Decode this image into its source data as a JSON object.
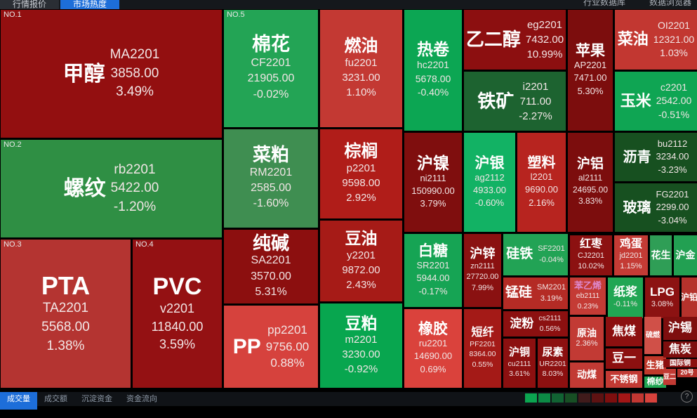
{
  "top_bar": {
    "tabs": [
      {
        "label": "行情报价",
        "active": false
      },
      {
        "label": "市场热度",
        "active": true
      }
    ],
    "menu": [
      {
        "label": "行业数据库"
      },
      {
        "label": "数据浏览器"
      }
    ]
  },
  "bottom_bar": {
    "tabs": [
      {
        "label": "成交量",
        "active": true
      },
      {
        "label": "成交额",
        "active": false
      },
      {
        "label": "沉淀资金",
        "active": false
      },
      {
        "label": "资金流向",
        "active": false
      }
    ],
    "legend_colors": [
      "#0ba550",
      "#0c8a45",
      "#116333",
      "#174f24",
      "#401b1b",
      "#5d1212",
      "#7e0e0e",
      "#a31616",
      "#c23732",
      "#d8423c"
    ],
    "help_icon": "?"
  },
  "tiles": [
    {
      "id": "jiachun",
      "rank": "NO.1",
      "name": "甲醇",
      "code": "MA2201",
      "price": "3858.00",
      "change": "3.49%",
      "color": "#930f10"
    },
    {
      "id": "luowen",
      "rank": "NO.2",
      "name": "螺纹",
      "code": "rb2201",
      "price": "5422.00",
      "change": "-1.20%",
      "color": "#2f8f44"
    },
    {
      "id": "pta",
      "rank": "NO.3",
      "name": "PTA",
      "code": "TA2201",
      "price": "5568.00",
      "change": "1.38%",
      "color": "#b43431"
    },
    {
      "id": "pvc",
      "rank": "NO.4",
      "name": "PVC",
      "code": "v2201",
      "price": "11840.00",
      "change": "3.59%",
      "color": "#941113"
    },
    {
      "id": "mianhua",
      "rank": "NO.5",
      "name": "棉花",
      "code": "CF2201",
      "price": "21905.00",
      "change": "-0.02%",
      "color": "#23a455"
    },
    {
      "id": "caipo",
      "name": "菜粕",
      "code": "RM2201",
      "price": "2585.00",
      "change": "-1.60%",
      "color": "#3f8e51"
    },
    {
      "id": "chunjian",
      "name": "纯碱",
      "code": "SA2201",
      "price": "3570.00",
      "change": "5.31%",
      "color": "#8c0f0f"
    },
    {
      "id": "pp",
      "name": "PP",
      "code": "pp2201",
      "price": "9756.00",
      "change": "0.88%",
      "color": "#d6423d"
    },
    {
      "id": "ranyou",
      "name": "燃油",
      "code": "fu2201",
      "price": "3231.00",
      "change": "1.10%",
      "color": "#c33933"
    },
    {
      "id": "zonglv",
      "name": "棕榈",
      "code": "p2201",
      "price": "9598.00",
      "change": "2.92%",
      "color": "#b01d19"
    },
    {
      "id": "douyou",
      "name": "豆油",
      "code": "y2201",
      "price": "9872.00",
      "change": "2.43%",
      "color": "#a61b17"
    },
    {
      "id": "doupo",
      "name": "豆粕",
      "code": "m2201",
      "price": "3230.00",
      "change": "-0.92%",
      "color": "#08a64f"
    },
    {
      "id": "rejuan",
      "name": "热卷",
      "code": "hc2201",
      "price": "5678.00",
      "change": "-0.40%",
      "color": "#0ca653"
    },
    {
      "id": "hunie",
      "name": "沪镍",
      "code": "ni2111",
      "price": "150990.00",
      "change": "3.79%",
      "color": "#7f0e0e"
    },
    {
      "id": "baitang",
      "name": "白糖",
      "code": "SR2201",
      "price": "5944.00",
      "change": "-0.17%",
      "color": "#16a454"
    },
    {
      "id": "xiangjiao",
      "name": "橡胶",
      "code": "ru2201",
      "price": "14690.00",
      "change": "0.69%",
      "color": "#da423c"
    },
    {
      "id": "yierchun",
      "name": "乙二醇",
      "code": "eg2201",
      "price": "7432.00",
      "change": "10.99%",
      "color": "#8c0f10"
    },
    {
      "id": "tiekuang",
      "name": "铁矿",
      "code": "i2201",
      "price": "711.00",
      "change": "-2.27%",
      "color": "#1d6330"
    },
    {
      "id": "huyin",
      "name": "沪银",
      "code": "ag2112",
      "price": "4933.00",
      "change": "-0.60%",
      "color": "#12b264"
    },
    {
      "id": "suliao",
      "name": "塑料",
      "code": "l2201",
      "price": "9690.00",
      "change": "2.16%",
      "color": "#b7241f"
    },
    {
      "id": "hulv",
      "name": "沪铝",
      "code": "al2111",
      "price": "24695.00",
      "change": "3.83%",
      "color": "#7c0d0d"
    },
    {
      "id": "pingguo",
      "name": "苹果",
      "code": "AP2201",
      "price": "7471.00",
      "change": "5.30%",
      "color": "#7c0d0d"
    },
    {
      "id": "caiyou",
      "name": "菜油",
      "code": "OI2201",
      "price": "12321.00",
      "change": "1.03%",
      "color": "#c23731"
    },
    {
      "id": "yumi",
      "name": "玉米",
      "code": "c2201",
      "price": "2542.00",
      "change": "-0.51%",
      "color": "#0fa553"
    },
    {
      "id": "liqing",
      "name": "沥青",
      "code": "bu2112",
      "price": "3234.00",
      "change": "-3.23%",
      "color": "#175020"
    },
    {
      "id": "boli",
      "name": "玻璃",
      "code": "FG2201",
      "price": "2299.00",
      "change": "-3.04%",
      "color": "#175020"
    },
    {
      "id": "huxin",
      "name": "沪锌",
      "code": "zn2111",
      "price": "27720.00",
      "change": "7.99%",
      "color": "#8a1111"
    },
    {
      "id": "guitie",
      "name": "硅铁",
      "code": "SF2201",
      "change": "-0.04%",
      "color": "#22a355"
    },
    {
      "id": "menggui",
      "name": "锰硅",
      "code": "SM2201",
      "change": "3.19%",
      "color": "#b42b25"
    },
    {
      "id": "duanxian",
      "name": "短纤",
      "code": "PF2201",
      "price": "8364.00",
      "change": "0.55%",
      "color": "#a41a17"
    },
    {
      "id": "dianfen",
      "name": "淀粉",
      "code": "cs2111",
      "change": "0.56%",
      "color": "#8c1010"
    },
    {
      "id": "hutong",
      "name": "沪铜",
      "code": "cu2111",
      "change": "3.61%",
      "color": "#8c1010"
    },
    {
      "id": "niaosu",
      "name": "尿素",
      "code": "UR2201",
      "change": "8.03%",
      "color": "#8c1010"
    },
    {
      "id": "hongzao",
      "name": "红枣",
      "code": "CJ2201",
      "change": "10.02%",
      "color": "#8c1111"
    },
    {
      "id": "jidan",
      "name": "鸡蛋",
      "code": "jd2201",
      "change": "1.15%",
      "color": "#c43b35"
    },
    {
      "id": "huasheng",
      "name": "花生",
      "color": "#2f9e56"
    },
    {
      "id": "hujin",
      "name": "沪金",
      "color": "#22a052"
    },
    {
      "id": "benyixi",
      "name": "苯乙烯",
      "code": "eb2111",
      "change": "0.23%",
      "color": "#c43b35",
      "name_color": "#dd88cc"
    },
    {
      "id": "zhijiang",
      "name": "纸浆",
      "change": "-0.11%",
      "color": "#21a653"
    },
    {
      "id": "lpg",
      "name": "LPG",
      "change": "3.08%",
      "color": "#8c1212"
    },
    {
      "id": "huqian",
      "name": "沪铅",
      "color": "#b5322c"
    },
    {
      "id": "yuanyou",
      "name": "原油",
      "change": "2.36%",
      "color": "#c23a34"
    },
    {
      "id": "dongmei",
      "name": "动煤",
      "color": "#c23a34"
    },
    {
      "id": "jiaomei",
      "name": "焦煤",
      "color": "#8c1010"
    },
    {
      "id": "douyi",
      "name": "豆一",
      "color": "#8c1010"
    },
    {
      "id": "buxiugang",
      "name": "不锈钢",
      "color": "#c23a34"
    },
    {
      "id": "liuran",
      "name": "硫燃",
      "color": "#d05048"
    },
    {
      "id": "shengzhu",
      "name": "生猪",
      "color": "#c0392b"
    },
    {
      "id": "miansha",
      "name": "棉纱",
      "color": "#21a653"
    },
    {
      "id": "huxi",
      "name": "沪锡",
      "color": "#7e0e0e"
    },
    {
      "id": "jiaotan",
      "name": "焦炭",
      "color": "#7e0e0e"
    },
    {
      "id": "guojitong",
      "name": "国际铜",
      "color": "#8c1010"
    },
    {
      "id": "douer",
      "name": "豆二",
      "color": "#c23a34"
    },
    {
      "id": "haojiao",
      "name": "20号",
      "color": "#b5322c"
    }
  ]
}
